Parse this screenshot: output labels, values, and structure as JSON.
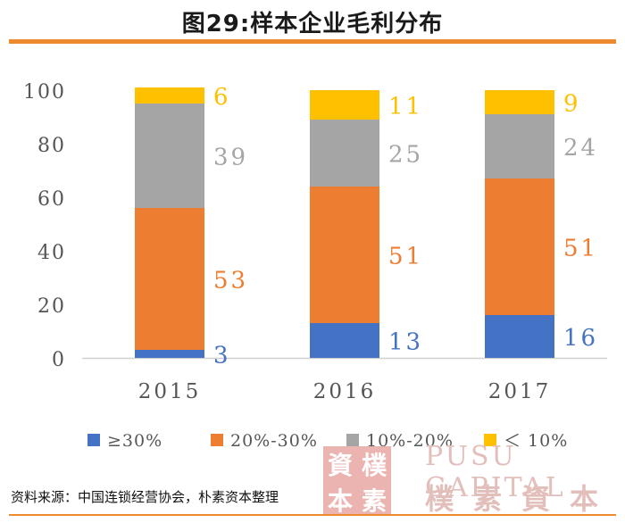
{
  "title": "图29:样本企业毛利分布",
  "source": "资料来源：中国连锁经营协会，朴素资本整理",
  "watermark": {
    "seal_text": "資樸本素",
    "brand_en": "PUSU CAPITAL",
    "brand_cn": "樸素資本"
  },
  "chart_data": {
    "type": "bar",
    "stacked": true,
    "categories": [
      "2015",
      "2016",
      "2017"
    ],
    "series": [
      {
        "name": "≥30%",
        "color": "#4472c4",
        "values": [
          3,
          13,
          16
        ]
      },
      {
        "name": "20%-30%",
        "color": "#ed7d31",
        "values": [
          53,
          51,
          51
        ]
      },
      {
        "name": "10%-20%",
        "color": "#a5a5a5",
        "values": [
          39,
          25,
          24
        ]
      },
      {
        "name": "＜ 10%",
        "color": "#ffc000",
        "values": [
          6,
          11,
          9
        ]
      }
    ],
    "ylim": [
      0,
      100
    ],
    "yticks": [
      0,
      20,
      40,
      60,
      80,
      100
    ],
    "xlabel": "",
    "ylabel": "",
    "grid": false,
    "legend_position": "bottom"
  }
}
